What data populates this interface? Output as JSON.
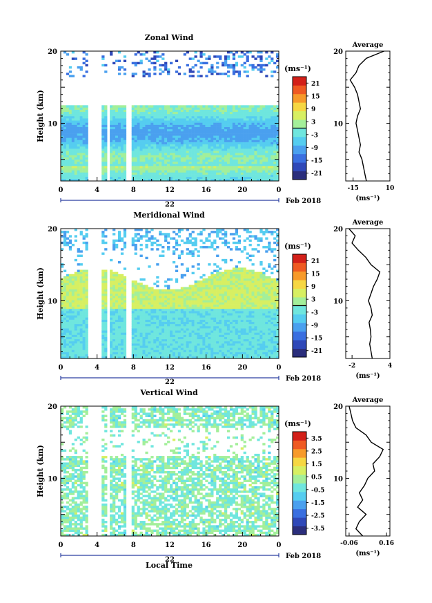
{
  "chart_data": {
    "type": "heatmap",
    "xlabel": "Local Time",
    "date_label": "22",
    "month_label": "Feb 2018",
    "x_ticks": [
      "0",
      "4",
      "8",
      "12",
      "16",
      "20",
      "0"
    ],
    "xlim": [
      0,
      24
    ],
    "data_gaps_hours": [
      [
        3.1,
        4.4
      ],
      [
        5.0,
        5.4
      ],
      [
        7.1,
        7.7
      ],
      [
        17.6,
        17.8
      ]
    ],
    "panels": [
      {
        "id": "zonal",
        "title": "Zonal Wind",
        "ylabel": "Height (km)",
        "ylim": [
          2,
          20
        ],
        "y_ticks": [
          "10",
          "20"
        ],
        "colorbar": {
          "unit": "(ms⁻¹)",
          "ticks": [
            "21",
            "15",
            "9",
            "3",
            "-3",
            "-9",
            "-15",
            "-21"
          ],
          "range": [
            -24,
            24
          ],
          "zero_line": true
        },
        "profile": {
          "title": "Average",
          "xlim": [
            -20,
            10
          ],
          "x_ticks": [
            "-15",
            "10"
          ],
          "xlabel": "(ms⁻¹)",
          "heights_km": [
            2,
            3,
            4,
            5,
            6,
            7,
            8,
            9,
            10,
            11,
            12,
            13,
            14,
            15,
            16,
            17,
            18,
            19,
            20
          ],
          "values": [
            -6,
            -7,
            -8,
            -9,
            -11,
            -10,
            -11,
            -12,
            -13,
            -12,
            -10,
            -11,
            -12,
            -14,
            -17,
            -13,
            -11,
            -6,
            6
          ]
        }
      },
      {
        "id": "meridional",
        "title": "Meridional Wind",
        "ylabel": "Height (km)",
        "ylim": [
          2,
          20
        ],
        "y_ticks": [
          "10",
          "20"
        ],
        "colorbar": {
          "unit": "(ms⁻¹)",
          "ticks": [
            "21",
            "15",
            "9",
            "3",
            "-3",
            "-9",
            "-15",
            "-21"
          ],
          "range": [
            -24,
            24
          ],
          "zero_line": true
        },
        "profile": {
          "title": "Average",
          "xlim": [
            -3,
            4
          ],
          "x_ticks": [
            "-2",
            "4"
          ],
          "xlabel": "(ms⁻¹)",
          "heights_km": [
            2,
            3,
            4,
            5,
            6,
            7,
            8,
            9,
            10,
            11,
            12,
            13,
            14,
            15,
            16,
            17,
            18,
            19,
            20
          ],
          "values": [
            1.2,
            1.0,
            0.8,
            1.0,
            0.9,
            0.7,
            1.2,
            1.0,
            0.6,
            1.0,
            1.4,
            2.0,
            2.4,
            1.0,
            0.2,
            -1.0,
            -2.0,
            -1.5,
            -2.5
          ]
        }
      },
      {
        "id": "vertical",
        "title": "Vertical Wind",
        "ylabel": "Height (km)",
        "ylim": [
          2,
          20
        ],
        "y_ticks": [
          "10",
          "20"
        ],
        "colorbar": {
          "unit": "(ms⁻¹)",
          "ticks": [
            "3.5",
            "2.5",
            "1.5",
            "0.5",
            "-0.5",
            "-1.5",
            "-2.5",
            "-3.5"
          ],
          "range": [
            -4,
            4
          ],
          "zero_line": false
        },
        "profile": {
          "title": "Average",
          "xlim": [
            -0.08,
            0.18
          ],
          "x_ticks": [
            "-0.06",
            "0.16"
          ],
          "xlabel": "(ms⁻¹)",
          "heights_km": [
            2,
            3,
            4,
            5,
            6,
            7,
            8,
            9,
            10,
            11,
            12,
            13,
            14,
            15,
            16,
            17,
            18,
            19,
            20
          ],
          "values": [
            0.02,
            -0.02,
            0.0,
            0.04,
            -0.01,
            0.02,
            0.0,
            0.03,
            0.05,
            0.09,
            0.08,
            0.12,
            0.14,
            0.07,
            0.04,
            -0.02,
            -0.04,
            -0.05,
            -0.06
          ]
        }
      }
    ]
  }
}
